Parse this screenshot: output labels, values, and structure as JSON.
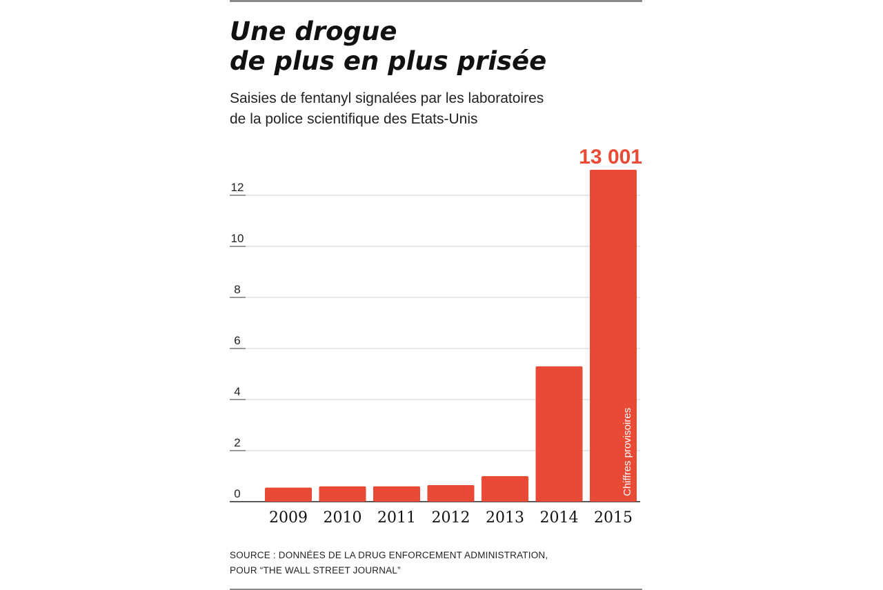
{
  "title_lines": [
    "Une drogue",
    "de plus en plus prisée"
  ],
  "subtitle_lines": [
    "Saisies de fentanyl signalées par les laboratoires",
    "de la police scientifique des Etats-Unis"
  ],
  "source_lines": [
    "SOURCE : DONNÉES DE LA DRUG ENFORCEMENT ADMINISTRATION,",
    "POUR “THE WALL STREET JOURNAL”"
  ],
  "colors": {
    "bar": "#e84a36",
    "highlight": "#e84a36",
    "grid": "#cfcfcf",
    "text": "#111111"
  },
  "chart_data": {
    "type": "bar",
    "categories": [
      "2009",
      "2010",
      "2011",
      "2012",
      "2013",
      "2014",
      "2015"
    ],
    "values": [
      0.55,
      0.6,
      0.6,
      0.65,
      1.0,
      5.3,
      13.0
    ],
    "y_ticks": [
      0,
      2,
      4,
      6,
      8,
      10,
      12
    ],
    "y_tick_labels": [
      "0",
      "2",
      "4",
      "6",
      "8",
      "10",
      "12"
    ],
    "ylim": [
      0,
      13.5
    ],
    "grid": true,
    "highlight_label": "13 001",
    "highlight_index": 6,
    "bar_annotation": "Chiffres provisoires"
  }
}
